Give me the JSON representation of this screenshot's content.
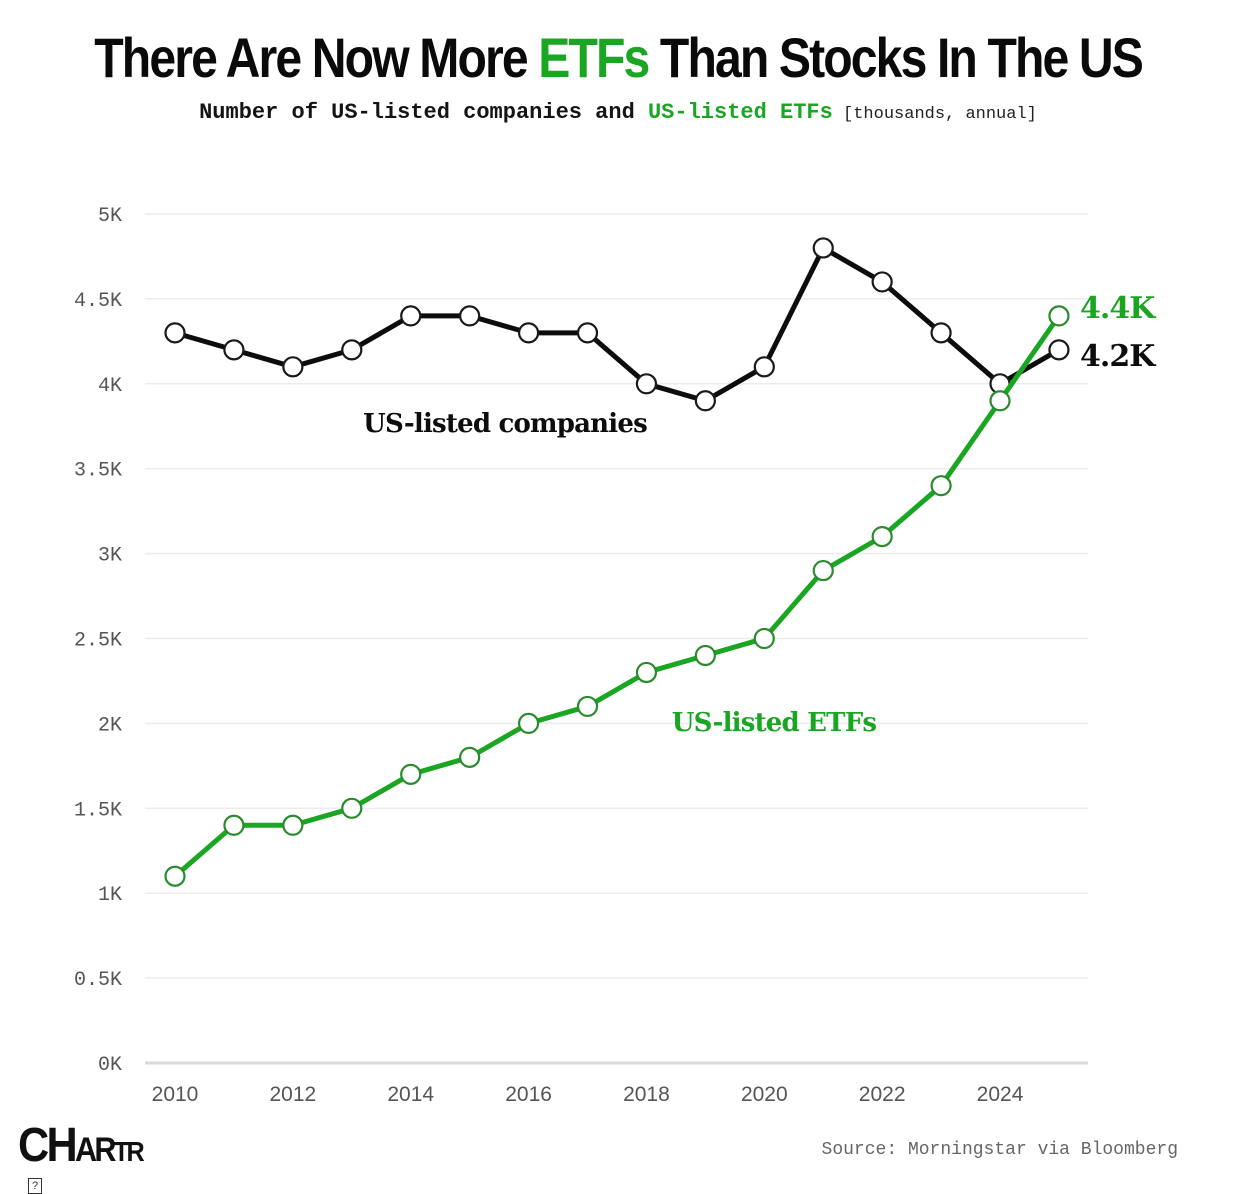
{
  "header": {
    "title_before": "There Are Now More ",
    "title_accent": "ETFs",
    "title_after": " Than Stocks In The US",
    "subtitle_before": "Number of US-listed companies and ",
    "subtitle_accent": "US-listed ETFs",
    "subtitle_unit": " [thousands, annual]"
  },
  "footer": {
    "logo_big": "CH",
    "logo_mid": "AR",
    "logo_small": "TR",
    "badge": "?",
    "source": "Source: Morningstar via Bloomberg"
  },
  "colors": {
    "accent_green": "#1aa622",
    "companies_black": "#0d0d0d",
    "grid": "#ececec",
    "baseline": "#d9d9d9"
  },
  "chart_data": {
    "type": "line",
    "title": "There Are Now More ETFs Than Stocks In The US",
    "subtitle": "Number of US-listed companies and US-listed ETFs [thousands, annual]",
    "xlabel": "",
    "ylabel": "",
    "x": [
      2010,
      2011,
      2012,
      2013,
      2014,
      2015,
      2016,
      2017,
      2018,
      2019,
      2020,
      2021,
      2022,
      2023,
      2024,
      2025
    ],
    "x_ticks": [
      2010,
      2012,
      2014,
      2016,
      2018,
      2020,
      2022,
      2024
    ],
    "x_tick_labels": [
      "2010",
      "2012",
      "2014",
      "2016",
      "2018",
      "2020",
      "2022",
      "2024"
    ],
    "ylim": [
      0,
      5000
    ],
    "y_ticks": [
      0,
      500,
      1000,
      1500,
      2000,
      2500,
      3000,
      3500,
      4000,
      4500,
      5000
    ],
    "y_tick_labels": [
      "0K",
      "0.5K",
      "1K",
      "1.5K",
      "2K",
      "2.5K",
      "3K",
      "3.5K",
      "4K",
      "4.5K",
      "5K"
    ],
    "grid": true,
    "legend": "inline labels",
    "series": [
      {
        "name": "US-listed companies",
        "color": "#0d0d0d",
        "values": [
          4300,
          4200,
          4100,
          4200,
          4400,
          4400,
          4300,
          4300,
          4000,
          3900,
          4100,
          4800,
          4600,
          4300,
          4000,
          4200
        ],
        "end_label": "4.2K"
      },
      {
        "name": "US-listed ETFs",
        "color": "#1aa622",
        "values": [
          1100,
          1400,
          1400,
          1500,
          1700,
          1800,
          2000,
          2100,
          2300,
          2400,
          2500,
          2900,
          3100,
          3400,
          3900,
          4400
        ],
        "end_label": "4.4K"
      }
    ],
    "annotations": [
      {
        "text": "US-listed companies",
        "series": 0
      },
      {
        "text": "US-listed ETFs",
        "series": 1
      },
      {
        "text": "4.4K",
        "series": 1
      },
      {
        "text": "4.2K",
        "series": 0
      }
    ]
  }
}
